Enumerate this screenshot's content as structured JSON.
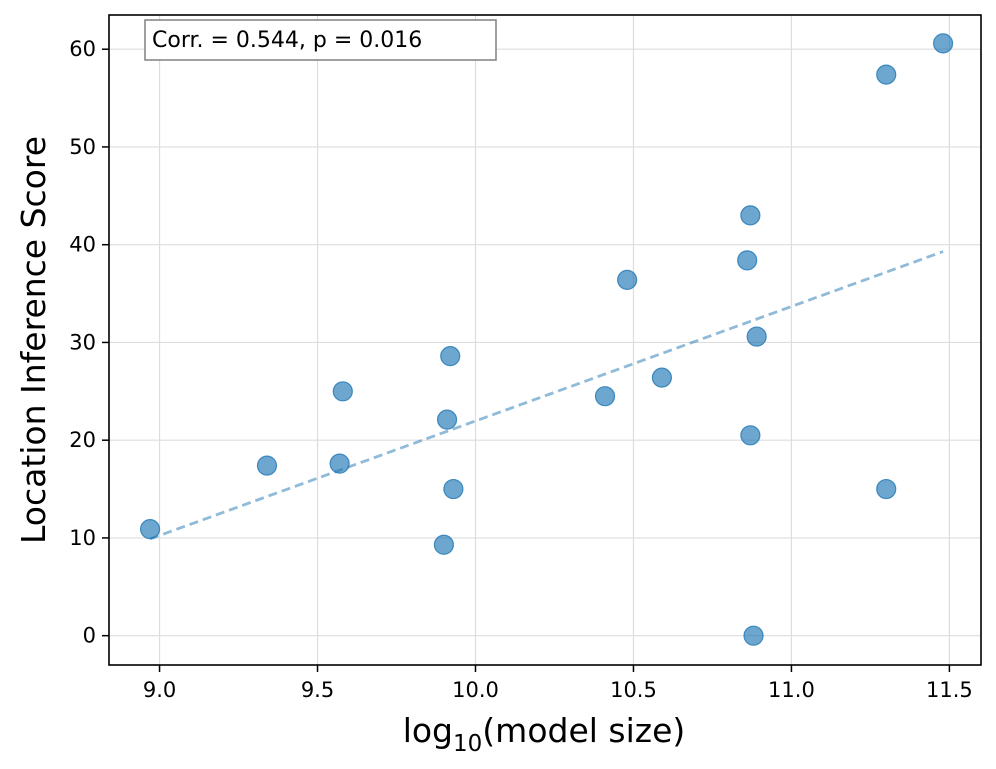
{
  "chart_data": {
    "type": "scatter",
    "title": "",
    "xlabel": {
      "base": "log",
      "subscript": "10",
      "rest": "(model size)"
    },
    "ylabel": "Location Inference Score",
    "xlim": [
      8.84,
      11.6
    ],
    "ylim": [
      -3,
      63.5
    ],
    "xticks": [
      9.0,
      9.5,
      10.0,
      10.5,
      11.0,
      11.5
    ],
    "xtick_labels": [
      "9.0",
      "9.5",
      "10.0",
      "10.5",
      "11.0",
      "11.5"
    ],
    "yticks": [
      0,
      10,
      20,
      30,
      40,
      50,
      60
    ],
    "ytick_labels": [
      "0",
      "10",
      "20",
      "30",
      "40",
      "50",
      "60"
    ],
    "grid": true,
    "points": [
      {
        "x": 8.97,
        "y": 10.9
      },
      {
        "x": 9.34,
        "y": 17.4
      },
      {
        "x": 9.57,
        "y": 17.6
      },
      {
        "x": 9.58,
        "y": 25.0
      },
      {
        "x": 9.9,
        "y": 9.3
      },
      {
        "x": 9.91,
        "y": 22.1
      },
      {
        "x": 9.92,
        "y": 28.6
      },
      {
        "x": 9.93,
        "y": 15.0
      },
      {
        "x": 10.41,
        "y": 24.5
      },
      {
        "x": 10.48,
        "y": 36.4
      },
      {
        "x": 10.59,
        "y": 26.4
      },
      {
        "x": 10.86,
        "y": 38.4
      },
      {
        "x": 10.87,
        "y": 43.0
      },
      {
        "x": 10.87,
        "y": 20.5
      },
      {
        "x": 10.88,
        "y": 0.0
      },
      {
        "x": 10.89,
        "y": 30.6
      },
      {
        "x": 11.3,
        "y": 57.4
      },
      {
        "x": 11.3,
        "y": 15.0
      },
      {
        "x": 11.48,
        "y": 60.6
      }
    ],
    "fit_line": {
      "x": [
        8.97,
        11.48
      ],
      "y": [
        9.9,
        39.3
      ]
    },
    "annotation": "Corr. = 0.544, p = 0.016",
    "colors": {
      "points": "#1f77b4",
      "fit_line": "#1f77b4",
      "grid": "#dddddd"
    }
  }
}
